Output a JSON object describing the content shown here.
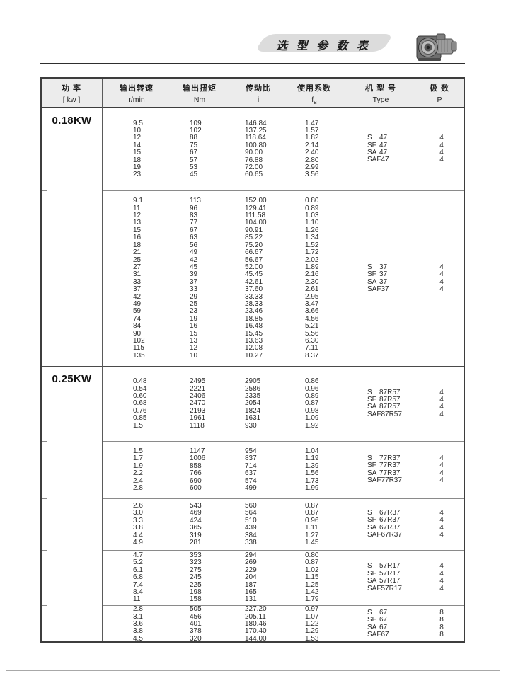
{
  "header": {
    "title": "选 型 参 数 表"
  },
  "table": {
    "columns": [
      {
        "zh": "功  率",
        "unit": "[ kw ]"
      },
      {
        "zh": "输出转速",
        "unit": "r/min"
      },
      {
        "zh": "输出扭矩",
        "unit": "Nm"
      },
      {
        "zh": "传动比",
        "unit": "i"
      },
      {
        "zh": "使用系数",
        "unit": "f",
        "unit_sub": "B"
      },
      {
        "zh": "机 型 号",
        "unit": "Type"
      },
      {
        "zh": "极  数",
        "unit": "P"
      }
    ],
    "sections": [
      {
        "power": "0.18KW",
        "blocks": [
          {
            "rows": [
              [
                "9.5",
                "109",
                "146.84",
                "1.47"
              ],
              [
                "10",
                "102",
                "137.25",
                "1.57"
              ],
              [
                "12",
                "88",
                "118.64",
                "1.82"
              ],
              [
                "14",
                "75",
                "100.80",
                "2.14"
              ],
              [
                "15",
                "67",
                "90.00",
                "2.40"
              ],
              [
                "18",
                "57",
                "76.88",
                "2.80"
              ],
              [
                "19",
                "53",
                "72.00",
                "2.99"
              ],
              [
                "23",
                "45",
                "60.65",
                "3.56"
              ]
            ],
            "types": [
              {
                "prefix": "S",
                "num": "47"
              },
              {
                "prefix": "SF",
                "num": "47"
              },
              {
                "prefix": "SA",
                "num": "47"
              },
              {
                "prefix": "SAF",
                "num": "47"
              }
            ],
            "poles": "4"
          },
          {
            "rows": [
              [
                "9.1",
                "113",
                "152.00",
                "0.80"
              ],
              [
                "11",
                "96",
                "129.41",
                "0.89"
              ],
              [
                "12",
                "83",
                "111.58",
                "1.03"
              ],
              [
                "13",
                "77",
                "104.00",
                "1.10"
              ],
              [
                "15",
                "67",
                "90.91",
                "1.26"
              ],
              [
                "16",
                "63",
                "85.22",
                "1.34"
              ],
              [
                "18",
                "56",
                "75.20",
                "1.52"
              ],
              [
                "21",
                "49",
                "66.67",
                "1.72"
              ],
              [
                "25",
                "42",
                "56.67",
                "2.02"
              ],
              [
                "27",
                "45",
                "52.00",
                "1.89"
              ],
              [
                "31",
                "39",
                "45.45",
                "2.16"
              ],
              [
                "33",
                "37",
                "42.61",
                "2.30"
              ],
              [
                "37",
                "33",
                "37.60",
                "2.61"
              ],
              [
                "42",
                "29",
                "33.33",
                "2.95"
              ],
              [
                "49",
                "25",
                "28.33",
                "3.47"
              ],
              [
                "59",
                "23",
                "23.46",
                "3.66"
              ],
              [
                "74",
                "19",
                "18.85",
                "4.56"
              ],
              [
                "84",
                "16",
                "16.48",
                "5.21"
              ],
              [
                "90",
                "15",
                "15.45",
                "5.56"
              ],
              [
                "102",
                "13",
                "13.63",
                "6.30"
              ],
              [
                "115",
                "12",
                "12.08",
                "7.11"
              ],
              [
                "135",
                "10",
                "10.27",
                "8.37"
              ]
            ],
            "types": [
              {
                "prefix": "S",
                "num": "37"
              },
              {
                "prefix": "SF",
                "num": "37"
              },
              {
                "prefix": "SA",
                "num": "37"
              },
              {
                "prefix": "SAF",
                "num": "37"
              }
            ],
            "poles": "4"
          }
        ]
      },
      {
        "power": "0.25KW",
        "blocks": [
          {
            "rows": [
              [
                "0.48",
                "2495",
                "2905",
                "0.86"
              ],
              [
                "0.54",
                "2221",
                "2586",
                "0.96"
              ],
              [
                "0.60",
                "2406",
                "2335",
                "0.89"
              ],
              [
                "0.68",
                "2470",
                "2054",
                "0.87"
              ],
              [
                "0.76",
                "2193",
                "1824",
                "0.98"
              ],
              [
                "0.85",
                "1961",
                "1631",
                "1.09"
              ],
              [
                "1.5",
                "1118",
                "930",
                "1.92"
              ]
            ],
            "types": [
              {
                "prefix": "S",
                "num": "87R57"
              },
              {
                "prefix": "SF",
                "num": "87R57"
              },
              {
                "prefix": "SA",
                "num": "87R57"
              },
              {
                "prefix": "SAF",
                "num": "87R57"
              }
            ],
            "poles": "4"
          },
          {
            "rows": [
              [
                "1.5",
                "1147",
                "954",
                "1.04"
              ],
              [
                "1.7",
                "1006",
                "837",
                "1.19"
              ],
              [
                "1.9",
                "858",
                "714",
                "1.39"
              ],
              [
                "2.2",
                "766",
                "637",
                "1.56"
              ],
              [
                "2.4",
                "690",
                "574",
                "1.73"
              ],
              [
                "2.8",
                "600",
                "499",
                "1.99"
              ]
            ],
            "types": [
              {
                "prefix": "S",
                "num": "77R37"
              },
              {
                "prefix": "SF",
                "num": "77R37"
              },
              {
                "prefix": "SA",
                "num": "77R37"
              },
              {
                "prefix": "SAF",
                "num": "77R37"
              }
            ],
            "poles": "4"
          },
          {
            "rows": [
              [
                "2.6",
                "543",
                "560",
                "0.87"
              ],
              [
                "3.0",
                "469",
                "564",
                "0.87"
              ],
              [
                "3.3",
                "424",
                "510",
                "0.96"
              ],
              [
                "3.8",
                "365",
                "439",
                "1.11"
              ],
              [
                "4.4",
                "319",
                "384",
                "1.27"
              ],
              [
                "4.9",
                "281",
                "338",
                "1.45"
              ]
            ],
            "types": [
              {
                "prefix": "S",
                "num": "67R37"
              },
              {
                "prefix": "SF",
                "num": "67R37"
              },
              {
                "prefix": "SA",
                "num": "67R37"
              },
              {
                "prefix": "SAF",
                "num": "67R37"
              }
            ],
            "poles": "4"
          },
          {
            "rows": [
              [
                "4.7",
                "353",
                "294",
                "0.80"
              ],
              [
                "5.2",
                "323",
                "269",
                "0.87"
              ],
              [
                "6.1",
                "275",
                "229",
                "1.02"
              ],
              [
                "6.8",
                "245",
                "204",
                "1.15"
              ],
              [
                "7.4",
                "225",
                "187",
                "1.25"
              ],
              [
                "8.4",
                "198",
                "165",
                "1.42"
              ],
              [
                "11",
                "158",
                "131",
                "1.79"
              ]
            ],
            "types": [
              {
                "prefix": "S",
                "num": "57R17"
              },
              {
                "prefix": "SF",
                "num": "57R17"
              },
              {
                "prefix": "SA",
                "num": "57R17"
              },
              {
                "prefix": "SAF",
                "num": "57R17"
              }
            ],
            "poles": "4"
          },
          {
            "rows": [
              [
                "2.8",
                "505",
                "227.20",
                "0.97"
              ],
              [
                "3.1",
                "456",
                "205.11",
                "1.07"
              ],
              [
                "3.6",
                "401",
                "180.46",
                "1.22"
              ],
              [
                "3.8",
                "378",
                "170.40",
                "1.29"
              ],
              [
                "4.5",
                "320",
                "144.00",
                "1.53"
              ]
            ],
            "types": [
              {
                "prefix": "S",
                "num": "67"
              },
              {
                "prefix": "SF",
                "num": "67"
              },
              {
                "prefix": "SA",
                "num": "67"
              },
              {
                "prefix": "SAF",
                "num": "67"
              }
            ],
            "poles": "8"
          }
        ]
      }
    ]
  },
  "colors": {
    "rule": "#2e2e2e",
    "table_border": "#3d3d3d",
    "header_bg": "#ececec",
    "banner_bg": "#dcdcdc"
  }
}
